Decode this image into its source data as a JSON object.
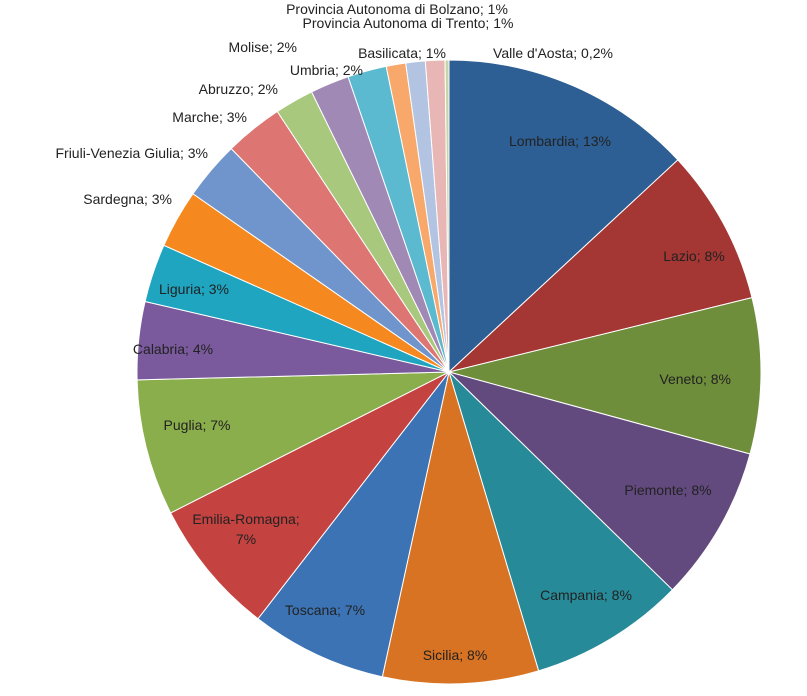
{
  "chart_data": {
    "type": "pie",
    "title": "",
    "start_angle_deg": 0,
    "direction": "clockwise",
    "slices": [
      {
        "name": "Lombardia",
        "value": 13,
        "value_label": "13%",
        "color": "#2d5f94"
      },
      {
        "name": "Lazio",
        "value": 8,
        "value_label": "8%",
        "color": "#a43633"
      },
      {
        "name": "Veneto",
        "value": 8,
        "value_label": "8%",
        "color": "#6f8e3c"
      },
      {
        "name": "Piemonte",
        "value": 8,
        "value_label": "8%",
        "color": "#624a7e"
      },
      {
        "name": "Campania",
        "value": 8,
        "value_label": "8%",
        "color": "#278a99"
      },
      {
        "name": "Sicilia",
        "value": 8,
        "value_label": "8%",
        "color": "#d77322"
      },
      {
        "name": "Toscana",
        "value": 7,
        "value_label": "7%",
        "color": "#3b73b5"
      },
      {
        "name": "Emilia-Romagna",
        "value": 7,
        "value_label": "7%",
        "color": "#c44340"
      },
      {
        "name": "Puglia",
        "value": 7,
        "value_label": "7%",
        "color": "#8aae4b"
      },
      {
        "name": "Calabria",
        "value": 4,
        "value_label": "4%",
        "color": "#7a5a9c"
      },
      {
        "name": "Liguria",
        "value": 3,
        "value_label": "3%",
        "color": "#1fa5c0"
      },
      {
        "name": "Sardegna",
        "value": 3,
        "value_label": "3%",
        "color": "#f5891f"
      },
      {
        "name": "Friuli-Venezia Giulia",
        "value": 3,
        "value_label": "3%",
        "color": "#6f95cc"
      },
      {
        "name": "Marche",
        "value": 3,
        "value_label": "3%",
        "color": "#dd7673"
      },
      {
        "name": "Abruzzo",
        "value": 2,
        "value_label": "2%",
        "color": "#a8c97d"
      },
      {
        "name": "Umbria",
        "value": 2,
        "value_label": "2%",
        "color": "#a189b5"
      },
      {
        "name": "Molise",
        "value": 2,
        "value_label": "2%",
        "color": "#5bbad0"
      },
      {
        "name": "Basilicata",
        "value": 1,
        "value_label": "1%",
        "color": "#f8a86b"
      },
      {
        "name": "Provincia Autonoma di Bolzano",
        "value": 1,
        "value_label": "1%",
        "color": "#b2c4e2"
      },
      {
        "name": "Provincia Autonoma di Trento",
        "value": 1,
        "value_label": "1%",
        "color": "#e8b6b4"
      },
      {
        "name": "Valle d'Aosta",
        "value": 0.2,
        "value_label": "0,2%",
        "color": "#c7d6a8"
      }
    ]
  }
}
